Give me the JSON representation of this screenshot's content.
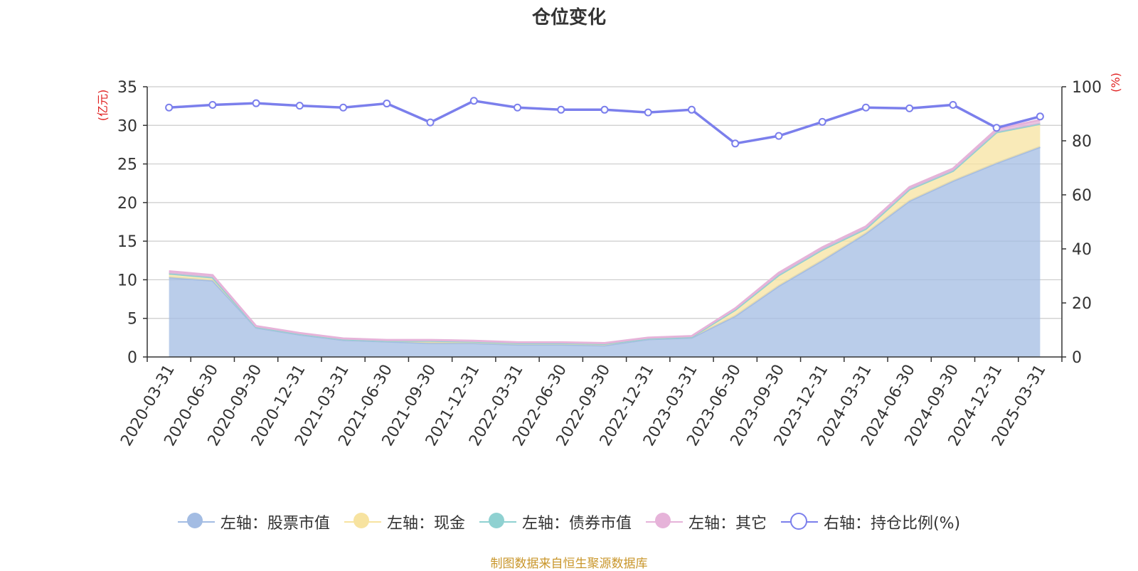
{
  "chart_data": {
    "type": "area",
    "title": "仓位变化",
    "left_axis_unit": "(亿元)",
    "right_axis_unit": "(%)",
    "categories": [
      "2020-03-31",
      "2020-06-30",
      "2020-09-30",
      "2020-12-31",
      "2021-03-31",
      "2021-06-30",
      "2021-09-30",
      "2021-12-31",
      "2022-03-31",
      "2022-06-30",
      "2022-09-30",
      "2022-12-31",
      "2023-03-31",
      "2023-06-30",
      "2023-09-30",
      "2023-12-31",
      "2024-03-31",
      "2024-06-30",
      "2024-09-30",
      "2024-12-31",
      "2025-03-31"
    ],
    "left_ylim": [
      0,
      35
    ],
    "left_ticks": [
      0,
      5,
      10,
      15,
      20,
      25,
      30,
      35
    ],
    "right_ylim": [
      0,
      100
    ],
    "right_ticks": [
      0,
      20,
      40,
      60,
      80,
      100
    ],
    "grid": true,
    "series": [
      {
        "name": "左轴：股票市值",
        "axis": "left",
        "type": "area",
        "stacked": true,
        "color": "#a3bce3",
        "values": [
          10.3,
          9.9,
          3.8,
          2.9,
          2.2,
          2.0,
          1.8,
          1.8,
          1.6,
          1.6,
          1.5,
          2.3,
          2.5,
          5.3,
          9.2,
          12.5,
          16.0,
          20.2,
          22.8,
          25.1,
          27.2
        ]
      },
      {
        "name": "左轴：现金",
        "axis": "left",
        "type": "area",
        "stacked": true,
        "color": "#f7e3a0",
        "values": [
          0.5,
          0.4,
          0.1,
          0.1,
          0.1,
          0.1,
          0.3,
          0.2,
          0.2,
          0.2,
          0.2,
          0.1,
          0.1,
          0.8,
          1.4,
          1.4,
          0.6,
          1.5,
          1.3,
          4.0,
          3.0
        ]
      },
      {
        "name": "左轴：债券市值",
        "axis": "left",
        "type": "area",
        "stacked": true,
        "color": "#8fd1d1",
        "values": [
          0,
          0,
          0,
          0,
          0,
          0,
          0,
          0,
          0,
          0,
          0,
          0,
          0,
          0,
          0,
          0,
          0,
          0,
          0,
          0,
          0
        ]
      },
      {
        "name": "左轴：其它",
        "axis": "left",
        "type": "area",
        "stacked": true,
        "color": "#e6b3d9",
        "values": [
          0.3,
          0.3,
          0.1,
          0.1,
          0.1,
          0.1,
          0.1,
          0.1,
          0.1,
          0.1,
          0.1,
          0.1,
          0.1,
          0.2,
          0.3,
          0.3,
          0.3,
          0.3,
          0.3,
          0.4,
          0.5
        ]
      },
      {
        "name": "右轴：持仓比例(%)",
        "axis": "right",
        "type": "line",
        "color": "#7b7fec",
        "values": [
          92.3,
          93.3,
          93.9,
          93.0,
          92.3,
          93.8,
          86.8,
          94.8,
          92.3,
          91.5,
          91.5,
          90.5,
          91.5,
          79.0,
          81.8,
          87.0,
          92.3,
          92.0,
          93.3,
          84.8,
          89.0
        ]
      }
    ]
  },
  "source_text": "制图数据来自恒生聚源数据库"
}
